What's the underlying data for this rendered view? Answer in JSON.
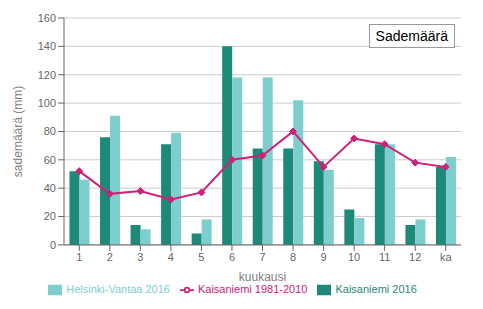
{
  "chart_data": {
    "type": "bar",
    "title": "Sademäärä",
    "xlabel": "kuukausi",
    "ylabel": "sademäärä (mm)",
    "categories": [
      "1",
      "2",
      "3",
      "4",
      "5",
      "6",
      "7",
      "8",
      "9",
      "10",
      "11",
      "12",
      "ka"
    ],
    "series": [
      {
        "name": "Kaisaniemi 2016",
        "type": "bar",
        "color": "#1d8a78",
        "values": [
          52,
          76,
          14,
          71,
          8,
          140,
          68,
          68,
          59,
          25,
          71,
          14,
          55
        ]
      },
      {
        "name": "Helsinki-Vantaa 2016",
        "type": "bar",
        "color": "#7ecece",
        "values": [
          46,
          91,
          11,
          79,
          18,
          118,
          118,
          102,
          53,
          19,
          71,
          18,
          62
        ]
      },
      {
        "name": "Kaisaniemi 1981-2010",
        "type": "line",
        "color": "#cc2277",
        "marker": "diamond",
        "values": [
          52,
          36,
          38,
          32,
          37,
          60,
          63,
          80,
          55,
          75,
          71,
          58,
          55
        ]
      }
    ],
    "ylim": [
      0,
      160
    ],
    "yticks": [
      0,
      20,
      40,
      60,
      80,
      100,
      120,
      140,
      160
    ],
    "grid": true,
    "legend": "bottom"
  }
}
